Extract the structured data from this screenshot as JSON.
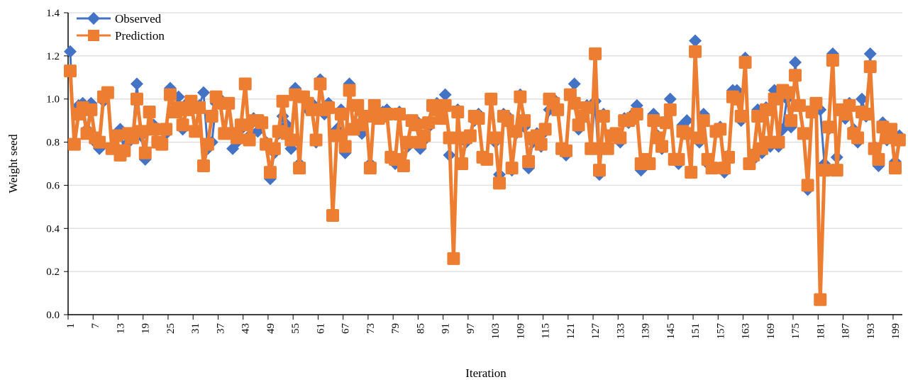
{
  "chart_data": {
    "type": "line",
    "xlabel": "Iteration",
    "ylabel": "Weight seed",
    "ylim": [
      0,
      1.4
    ],
    "yticks": [
      "0.0",
      "0.2",
      "0.4",
      "0.6",
      "0.8",
      "1.0",
      "1.2",
      "1.4"
    ],
    "xticks": [
      "1",
      "7",
      "13",
      "19",
      "25",
      "31",
      "37",
      "43",
      "49",
      "55",
      "61",
      "67",
      "73",
      "79",
      "85",
      "91",
      "97",
      "103",
      "109",
      "115",
      "121",
      "127",
      "133",
      "139",
      "145",
      "151",
      "157",
      "163",
      "169",
      "175",
      "181",
      "187",
      "193",
      "199"
    ],
    "xrange": [
      1,
      200
    ],
    "grid": "horizontal",
    "legend": "top-left",
    "series": [
      {
        "name": "Observed",
        "color": "#4472C4",
        "marker": "diamond",
        "values": [
          1.22,
          0.79,
          0.97,
          0.98,
          0.86,
          0.98,
          0.8,
          0.77,
          0.99,
          1.02,
          0.78,
          0.82,
          0.86,
          0.75,
          0.8,
          0.84,
          1.07,
          0.83,
          0.72,
          0.93,
          0.88,
          0.8,
          0.79,
          0.84,
          1.05,
          0.95,
          1.01,
          0.86,
          0.98,
          0.96,
          0.86,
          0.97,
          1.03,
          0.77,
          0.8,
          0.98,
          1.0,
          0.84,
          0.98,
          0.77,
          0.8,
          0.86,
          1.07,
          0.83,
          0.91,
          0.85,
          0.9,
          0.8,
          0.63,
          0.75,
          0.84,
          0.92,
          0.88,
          0.77,
          1.05,
          0.7,
          1.01,
          0.95,
          0.98,
          0.8,
          1.09,
          0.93,
          0.98,
          0.46,
          0.86,
          0.95,
          0.75,
          1.07,
          0.87,
          0.96,
          0.84,
          0.92,
          0.7,
          0.95,
          0.92,
          0.94,
          0.95,
          0.72,
          0.7,
          0.94,
          0.7,
          0.78,
          0.89,
          0.9,
          0.77,
          0.81,
          0.87,
          0.97,
          0.98,
          0.93,
          1.02,
          0.74,
          0.27,
          0.95,
          0.71,
          0.8,
          0.82,
          0.9,
          0.93,
          0.73,
          0.72,
          0.99,
          0.8,
          0.65,
          0.93,
          0.92,
          0.67,
          0.84,
          1.02,
          0.87,
          0.68,
          0.8,
          0.84,
          0.78,
          0.85,
          0.95,
          1.0,
          0.96,
          0.77,
          0.74,
          1.02,
          1.07,
          0.86,
          0.91,
          0.97,
          0.78,
          0.99,
          0.65,
          0.93,
          0.78,
          0.84,
          0.83,
          0.8,
          0.91,
          0.89,
          0.93,
          0.97,
          0.67,
          0.7,
          0.7,
          0.93,
          0.83,
          0.77,
          0.9,
          1.0,
          0.72,
          0.7,
          0.88,
          0.9,
          0.66,
          1.27,
          0.8,
          0.93,
          0.7,
          0.68,
          0.86,
          0.87,
          0.66,
          0.74,
          1.04,
          1.04,
          0.9,
          1.19,
          0.7,
          0.72,
          0.95,
          0.75,
          0.96,
          0.78,
          1.04,
          0.78,
          0.86,
          1.0,
          0.87,
          1.17,
          0.97,
          0.84,
          0.58,
          0.95,
          0.96,
          0.95,
          0.7,
          0.86,
          1.21,
          0.73,
          0.94,
          0.91,
          0.98,
          0.86,
          0.8,
          1.0,
          0.92,
          1.21,
          0.78,
          0.69,
          0.89,
          0.81,
          0.85,
          0.71,
          0.83
        ]
      },
      {
        "name": "Prediction",
        "color": "#ED7D31",
        "marker": "square",
        "values": [
          1.13,
          0.79,
          0.93,
          0.96,
          0.84,
          0.95,
          0.82,
          0.8,
          1.01,
          1.03,
          0.77,
          0.83,
          0.74,
          0.76,
          0.84,
          0.82,
          1.0,
          0.85,
          0.75,
          0.94,
          0.86,
          0.8,
          0.79,
          0.86,
          1.02,
          0.94,
          0.96,
          0.88,
          0.95,
          0.99,
          0.85,
          0.96,
          0.69,
          0.79,
          0.92,
          1.01,
          0.98,
          0.84,
          0.98,
          0.84,
          0.82,
          0.88,
          1.07,
          0.81,
          0.9,
          0.9,
          0.89,
          0.79,
          0.66,
          0.77,
          0.85,
          0.99,
          0.84,
          0.81,
          1.02,
          0.68,
          1.01,
          0.98,
          0.95,
          0.81,
          1.07,
          0.95,
          0.96,
          0.46,
          0.83,
          0.93,
          0.78,
          1.04,
          0.86,
          0.97,
          0.88,
          0.92,
          0.68,
          0.97,
          0.91,
          0.92,
          0.93,
          0.73,
          0.72,
          0.93,
          0.69,
          0.8,
          0.9,
          0.88,
          0.8,
          0.83,
          0.89,
          0.97,
          0.95,
          0.91,
          0.97,
          0.82,
          0.26,
          0.94,
          0.7,
          0.82,
          0.83,
          0.92,
          0.91,
          0.73,
          0.72,
          1.0,
          0.82,
          0.61,
          0.92,
          0.9,
          0.68,
          0.85,
          1.01,
          0.9,
          0.71,
          0.82,
          0.83,
          0.79,
          0.86,
          1.0,
          0.98,
          0.95,
          0.77,
          0.76,
          1.02,
          0.98,
          0.88,
          0.92,
          0.96,
          0.77,
          1.21,
          0.67,
          0.92,
          0.77,
          0.83,
          0.84,
          0.82,
          0.9,
          0.9,
          0.91,
          0.93,
          0.7,
          0.72,
          0.7,
          0.9,
          0.82,
          0.78,
          0.89,
          0.95,
          0.72,
          0.72,
          0.85,
          0.84,
          0.66,
          1.22,
          0.82,
          0.9,
          0.72,
          0.68,
          0.85,
          0.86,
          0.68,
          0.73,
          1.01,
          1.0,
          0.92,
          1.17,
          0.7,
          0.74,
          0.92,
          0.77,
          0.95,
          0.8,
          1.0,
          0.8,
          1.04,
          1.03,
          0.9,
          1.11,
          0.97,
          0.84,
          0.6,
          0.94,
          0.98,
          0.07,
          0.67,
          0.87,
          1.18,
          0.67,
          0.95,
          0.93,
          0.97,
          0.84,
          0.82,
          0.94,
          0.93,
          1.15,
          0.77,
          0.72,
          0.87,
          0.82,
          0.86,
          0.68,
          0.81
        ]
      }
    ]
  }
}
